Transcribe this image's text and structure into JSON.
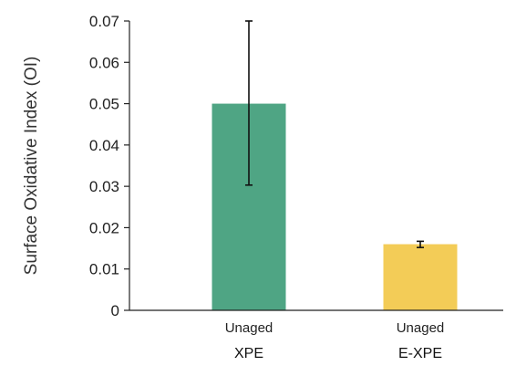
{
  "chart_data": {
    "type": "bar",
    "title": "",
    "ylabel": "Surface Oxidative Index (OI)",
    "xlabel": "",
    "ylim": [
      0,
      0.07
    ],
    "yticks": [
      0,
      0.01,
      0.02,
      0.03,
      0.04,
      0.05,
      0.06,
      0.07
    ],
    "ytick_labels": [
      "0",
      "0.01",
      "0.02",
      "0.03",
      "0.04",
      "0.05",
      "0.06",
      "0.07"
    ],
    "categories": [
      "Unaged",
      "Unaged"
    ],
    "groups": [
      "XPE",
      "E-XPE"
    ],
    "values": [
      0.05,
      0.016
    ],
    "error_low": [
      0.0303,
      0.0152
    ],
    "error_high": [
      0.07,
      0.0167
    ],
    "colors": [
      "#4fa584",
      "#f3cc57"
    ],
    "grid": false
  }
}
